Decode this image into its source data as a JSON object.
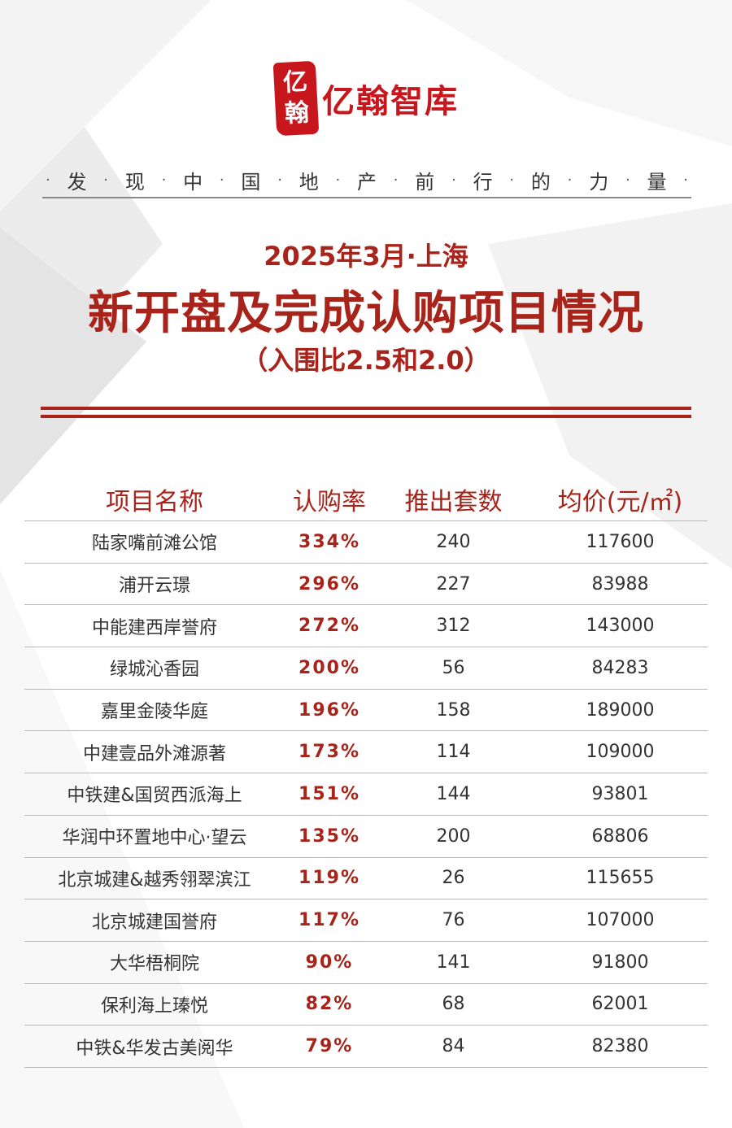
{
  "brand": {
    "seal_chars": [
      "亿",
      "翰"
    ],
    "name": "亿翰智库"
  },
  "slogan": [
    "发",
    "现",
    "中",
    "国",
    "地",
    "产",
    "前",
    "行",
    "的",
    "力",
    "量"
  ],
  "heading": {
    "date": "2025年3月·上海",
    "title": "新开盘及完成认购项目情况",
    "subtitle": "（入围比2.5和2.0）"
  },
  "table": {
    "headers": [
      "项目名称",
      "认购率",
      "推出套数",
      "均价(元/㎡)"
    ],
    "rows": [
      [
        "陆家嘴前滩公馆",
        "334%",
        "240",
        "117600"
      ],
      [
        "浦开云璟",
        "296%",
        "227",
        "83988"
      ],
      [
        "中能建西岸誉府",
        "272%",
        "312",
        "143000"
      ],
      [
        "绿城沁香园",
        "200%",
        "56",
        "84283"
      ],
      [
        "嘉里金陵华庭",
        "196%",
        "158",
        "189000"
      ],
      [
        "中建壹品外滩源著",
        "173%",
        "114",
        "109000"
      ],
      [
        "中铁建&国贸西派海上",
        "151%",
        "144",
        "93801"
      ],
      [
        "华润中环置地中心·望云",
        "135%",
        "200",
        "68806"
      ],
      [
        "北京城建&越秀翎翠滨江",
        "119%",
        "26",
        "115655"
      ],
      [
        "北京城建国誉府",
        "117%",
        "76",
        "107000"
      ],
      [
        "大华梧桐院",
        "90%",
        "141",
        "91800"
      ],
      [
        "保利海上瑧悦",
        "82%",
        "68",
        "62001"
      ],
      [
        "中铁&华发古美阅华",
        "79%",
        "84",
        "82380"
      ]
    ]
  },
  "colors": {
    "accent": "#a8231a",
    "seal": "#c8161d"
  }
}
